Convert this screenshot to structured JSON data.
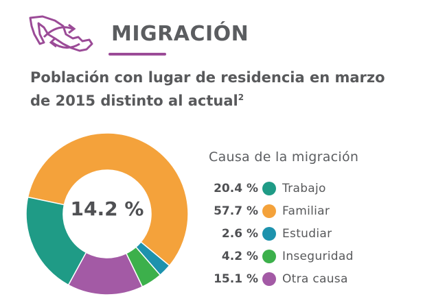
{
  "header": {
    "title": "MIGRACIÓN",
    "icon": "mexico-map-migration-icon",
    "accent_color": "#9b4b97"
  },
  "subtitle": {
    "line1": "Población con lugar de residencia en marzo",
    "line2": "de 2015 distinto al actual",
    "footnote_marker": "2"
  },
  "chart_data": {
    "type": "pie",
    "center_label": "14.2 %",
    "legend_title": "Causa de la migración",
    "categories": [
      "Trabajo",
      "Familiar",
      "Estudiar",
      "Inseguridad",
      "Otra causa"
    ],
    "values": [
      20.4,
      57.7,
      2.6,
      4.2,
      15.1
    ],
    "value_labels": [
      "20.4 %",
      "57.7 %",
      "2.6 %",
      "4.2 %",
      "15.1 %"
    ],
    "colors": [
      "#1f9b86",
      "#f4a23b",
      "#1d92ad",
      "#3cb04b",
      "#a35aa5"
    ],
    "slice_order": [
      "Familiar",
      "Estudiar",
      "Inseguridad",
      "Otra causa",
      "Trabajo"
    ],
    "legend_placement": "right",
    "donut": true
  }
}
